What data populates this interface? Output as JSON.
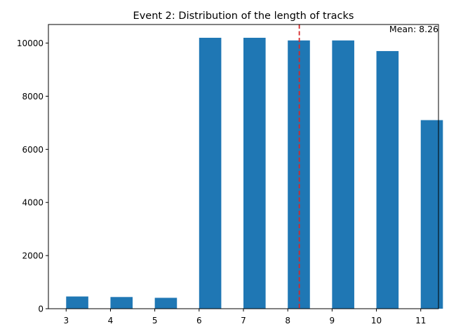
{
  "chart_data": {
    "type": "bar",
    "title": "Event 2: Distribution of the length of tracks",
    "xlabel": "",
    "ylabel": "",
    "xlim": [
      2.6,
      11.4
    ],
    "ylim": [
      0,
      10700
    ],
    "xticks": [
      3,
      4,
      5,
      6,
      7,
      8,
      9,
      10,
      11
    ],
    "yticks": [
      0,
      2000,
      4000,
      6000,
      8000,
      10000
    ],
    "bars": [
      {
        "x0": 3.0,
        "x1": 3.5,
        "value": 460
      },
      {
        "x0": 4.0,
        "x1": 4.5,
        "value": 440
      },
      {
        "x0": 5.0,
        "x1": 5.5,
        "value": 410
      },
      {
        "x0": 6.0,
        "x1": 6.5,
        "value": 10200
      },
      {
        "x0": 7.0,
        "x1": 7.5,
        "value": 10200
      },
      {
        "x0": 8.0,
        "x1": 8.5,
        "value": 10100
      },
      {
        "x0": 9.0,
        "x1": 9.5,
        "value": 10100
      },
      {
        "x0": 10.0,
        "x1": 10.5,
        "value": 9700
      },
      {
        "x0": 11.0,
        "x1": 11.5,
        "value": 7100
      }
    ],
    "mean": {
      "value": 8.26,
      "label": "Mean: 8.26",
      "color": "#d62728"
    },
    "bar_color": "#1f77b4",
    "grid": false,
    "legend": "none"
  }
}
